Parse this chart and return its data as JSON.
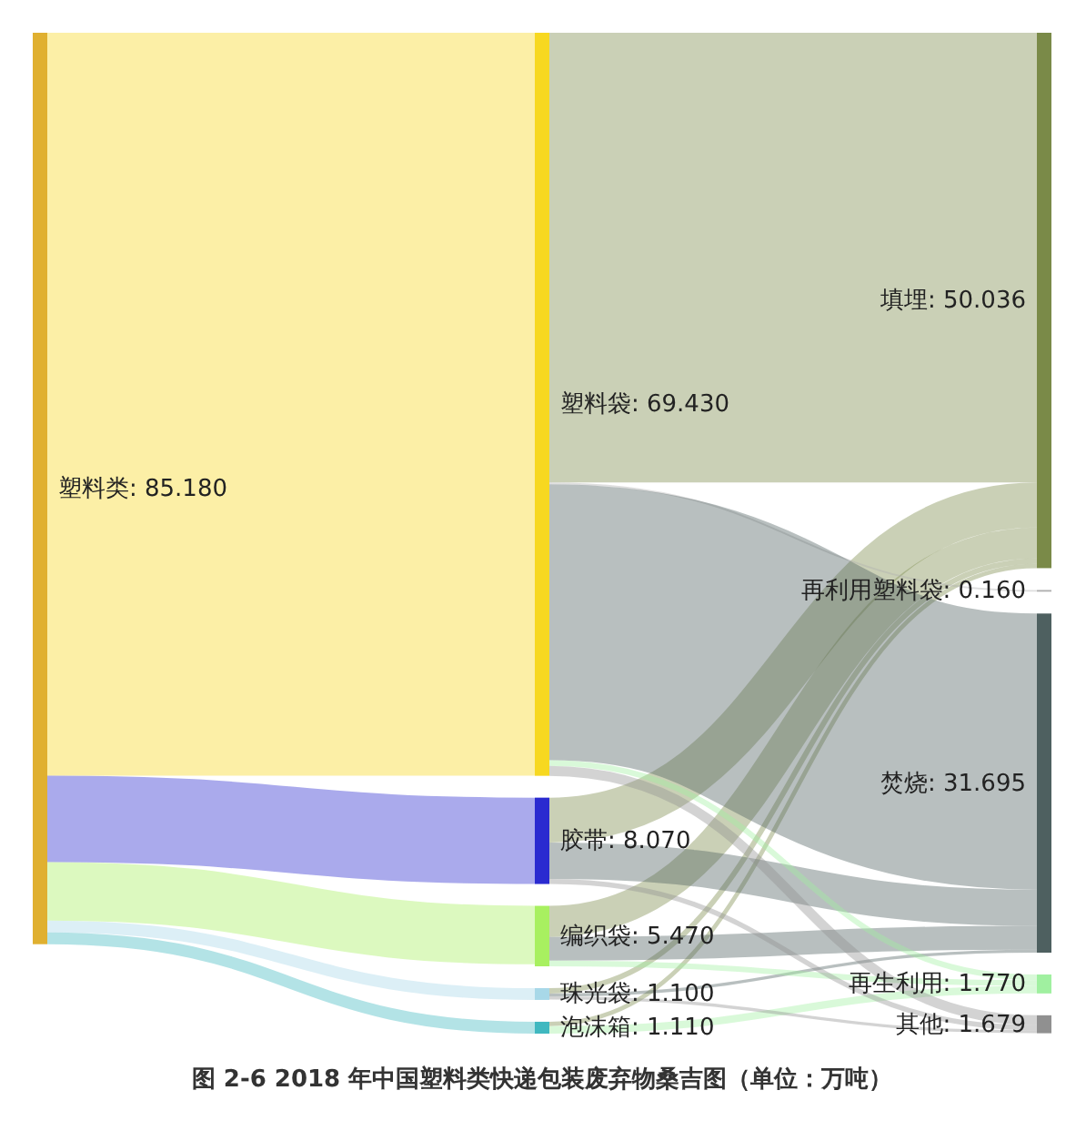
{
  "chart_data": {
    "type": "other",
    "title": "图 2-6 2018 年中国塑料类快递包装废弃物桑吉图（单位：万吨）",
    "categories": [
      "塑料类",
      "塑料袋",
      "胶带",
      "编织袋",
      "珠光袋",
      "泡沫箱",
      "填埋",
      "再利用塑料袋",
      "焚烧",
      "再生利用",
      "其他"
    ],
    "value_labels": [
      ": 85.180",
      ": 69.430",
      ": 8.070",
      ": 5.470",
      ": 1.100",
      ": 1.110",
      ": 50.036",
      ": 0.160",
      ": 31.695",
      ": 1.770",
      ": 1.679"
    ],
    "values": [
      85.18,
      69.43,
      8.07,
      5.47,
      1.1,
      1.11,
      50.036,
      0.16,
      31.695,
      1.77,
      1.679
    ],
    "colors": [
      "#e0b030",
      "#f7d820",
      "#2a2ad0",
      "#a8f060",
      "#a8d8e8",
      "#40b8c0",
      "#7a8a48",
      "#b0b0b0",
      "#4e6060",
      "#a0f0a0",
      "#909090"
    ]
  }
}
